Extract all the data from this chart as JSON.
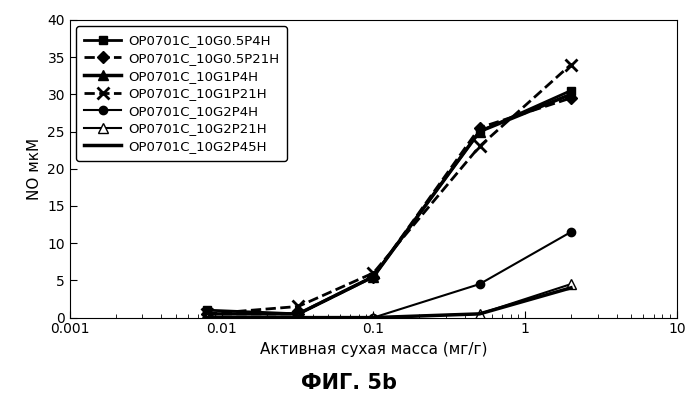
{
  "title": "ФИГ. 5b",
  "xlabel": "Активная сухая масса (мг/г)",
  "ylabel": "NO мкМ",
  "xlim": [
    0.001,
    10
  ],
  "ylim": [
    0,
    40
  ],
  "yticks": [
    0,
    5,
    10,
    15,
    20,
    25,
    30,
    35,
    40
  ],
  "series": [
    {
      "label": "OP0701C_10G0.5P4H",
      "x": [
        0.008,
        0.032,
        0.1,
        0.5,
        2.0
      ],
      "y": [
        1.0,
        0.5,
        5.5,
        25.0,
        30.5
      ],
      "color": "#000000",
      "linestyle": "-",
      "marker": "s",
      "linewidth": 2.0,
      "markersize": 6,
      "markerfacecolor": "#000000"
    },
    {
      "label": "OP0701C_10G0.5P21H",
      "x": [
        0.008,
        0.032,
        0.1,
        0.5,
        2.0
      ],
      "y": [
        0.5,
        0.5,
        5.5,
        25.5,
        29.5
      ],
      "color": "#000000",
      "linestyle": "--",
      "marker": "D",
      "linewidth": 2.0,
      "markersize": 6,
      "markerfacecolor": "#000000"
    },
    {
      "label": "OP0701C_10G1P4H",
      "x": [
        0.008,
        0.032,
        0.1,
        0.5,
        2.0
      ],
      "y": [
        0.5,
        0.5,
        5.5,
        25.0,
        30.0
      ],
      "color": "#000000",
      "linestyle": "-",
      "marker": "^",
      "linewidth": 2.5,
      "markersize": 7,
      "markerfacecolor": "#000000"
    },
    {
      "label": "OP0701C_10G1P21H",
      "x": [
        0.008,
        0.032,
        0.1,
        0.5,
        2.0
      ],
      "y": [
        0.5,
        1.5,
        6.0,
        23.0,
        34.0
      ],
      "color": "#000000",
      "linestyle": "--",
      "marker": "x",
      "linewidth": 2.0,
      "markersize": 8,
      "markerfacecolor": "#000000",
      "markeredgewidth": 2.0
    },
    {
      "label": "OP0701C_10G2P4H",
      "x": [
        0.008,
        0.032,
        0.1,
        0.5,
        2.0
      ],
      "y": [
        0.0,
        0.0,
        0.0,
        4.5,
        11.5
      ],
      "color": "#000000",
      "linestyle": "-",
      "marker": "o",
      "linewidth": 1.5,
      "markersize": 6,
      "markerfacecolor": "#000000"
    },
    {
      "label": "OP0701C_10G2P21H",
      "x": [
        0.008,
        0.032,
        0.1,
        0.5,
        2.0
      ],
      "y": [
        0.0,
        -0.2,
        0.0,
        0.5,
        4.5
      ],
      "color": "#000000",
      "linestyle": "-",
      "marker": "^",
      "linewidth": 1.5,
      "markersize": 7,
      "markerfacecolor": "white"
    },
    {
      "label": "OP0701C_10G2P45H",
      "x": [
        0.008,
        0.032,
        0.1,
        0.5,
        2.0
      ],
      "y": [
        0.0,
        0.0,
        0.0,
        0.5,
        4.0
      ],
      "color": "#000000",
      "linestyle": "-",
      "marker": null,
      "linewidth": 2.5,
      "markersize": 0,
      "markerfacecolor": "#000000"
    }
  ],
  "background_color": "#ffffff",
  "legend_fontsize": 9.5,
  "axis_label_fontsize": 11,
  "tick_fontsize": 10,
  "title_fontsize": 15
}
